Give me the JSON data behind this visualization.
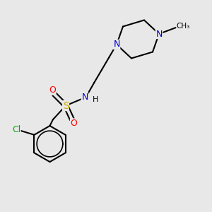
{
  "bg_color": "#e8e8e8",
  "bond_color": "#000000",
  "bond_width": 1.5,
  "atom_colors": {
    "N": "#0000cc",
    "S": "#ccaa00",
    "O": "#ff0000",
    "Cl": "#00aa00",
    "C": "#000000",
    "H": "#000000"
  },
  "font_size": 8,
  "figsize": [
    3.0,
    3.0
  ],
  "dpi": 100
}
